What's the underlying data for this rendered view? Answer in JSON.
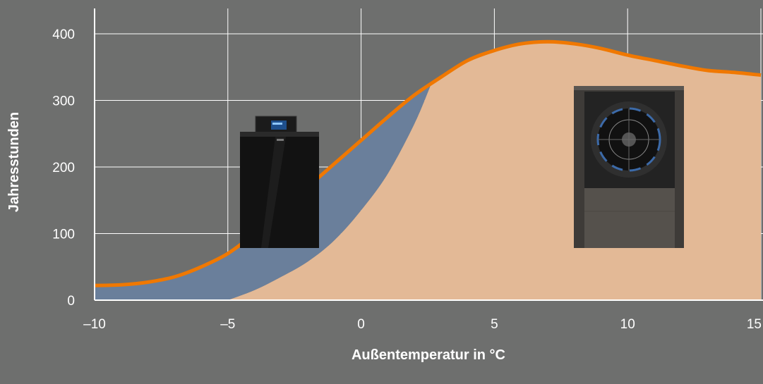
{
  "chart_data": {
    "type": "area",
    "xlabel": "Außentemperatur in °C",
    "ylabel": "Jahresstunden",
    "xlim": [
      -10,
      15
    ],
    "ylim": [
      0,
      400
    ],
    "x_ticks": [
      -10,
      -5,
      0,
      5,
      10,
      15
    ],
    "x_tick_labels": [
      "–10",
      "–5",
      "0",
      "5",
      "10",
      "15"
    ],
    "y_ticks": [
      0,
      100,
      200,
      300,
      400
    ],
    "y_tick_labels": [
      "0",
      "100",
      "200",
      "300",
      "400"
    ],
    "grid": true,
    "series": [
      {
        "values_xy": [
          [
            -10,
            22
          ],
          [
            -9,
            23
          ],
          [
            -8,
            27
          ],
          [
            -7,
            35
          ],
          [
            -6,
            50
          ],
          [
            -5,
            70
          ],
          [
            -4,
            100
          ],
          [
            -3,
            135
          ],
          [
            -2,
            170
          ],
          [
            -1,
            205
          ],
          [
            0,
            240
          ],
          [
            1,
            275
          ],
          [
            2,
            308
          ],
          [
            3,
            335
          ],
          [
            4,
            360
          ],
          [
            5,
            375
          ],
          [
            6,
            385
          ],
          [
            7,
            388
          ],
          [
            8,
            385
          ],
          [
            9,
            378
          ],
          [
            10,
            368
          ],
          [
            11,
            360
          ],
          [
            12,
            352
          ],
          [
            13,
            345
          ],
          [
            14,
            342
          ],
          [
            15,
            338
          ]
        ]
      },
      {
        "values_xy": [
          [
            -5,
            0
          ],
          [
            -4,
            15
          ],
          [
            -3,
            35
          ],
          [
            -2,
            58
          ],
          [
            -1,
            90
          ],
          [
            0,
            135
          ],
          [
            1,
            190
          ],
          [
            2,
            265
          ],
          [
            2.6,
            322
          ]
        ]
      }
    ],
    "colors": {
      "background": "#6e6f6e",
      "grid": "#ffffff",
      "demand_line": "#f07800",
      "heat_pump_area": "#e3b996",
      "boiler_area": "#6a7f9b"
    }
  },
  "images": {
    "left": "gas-condensing-boiler-photo",
    "right": "air-source-heat-pump-photo"
  }
}
